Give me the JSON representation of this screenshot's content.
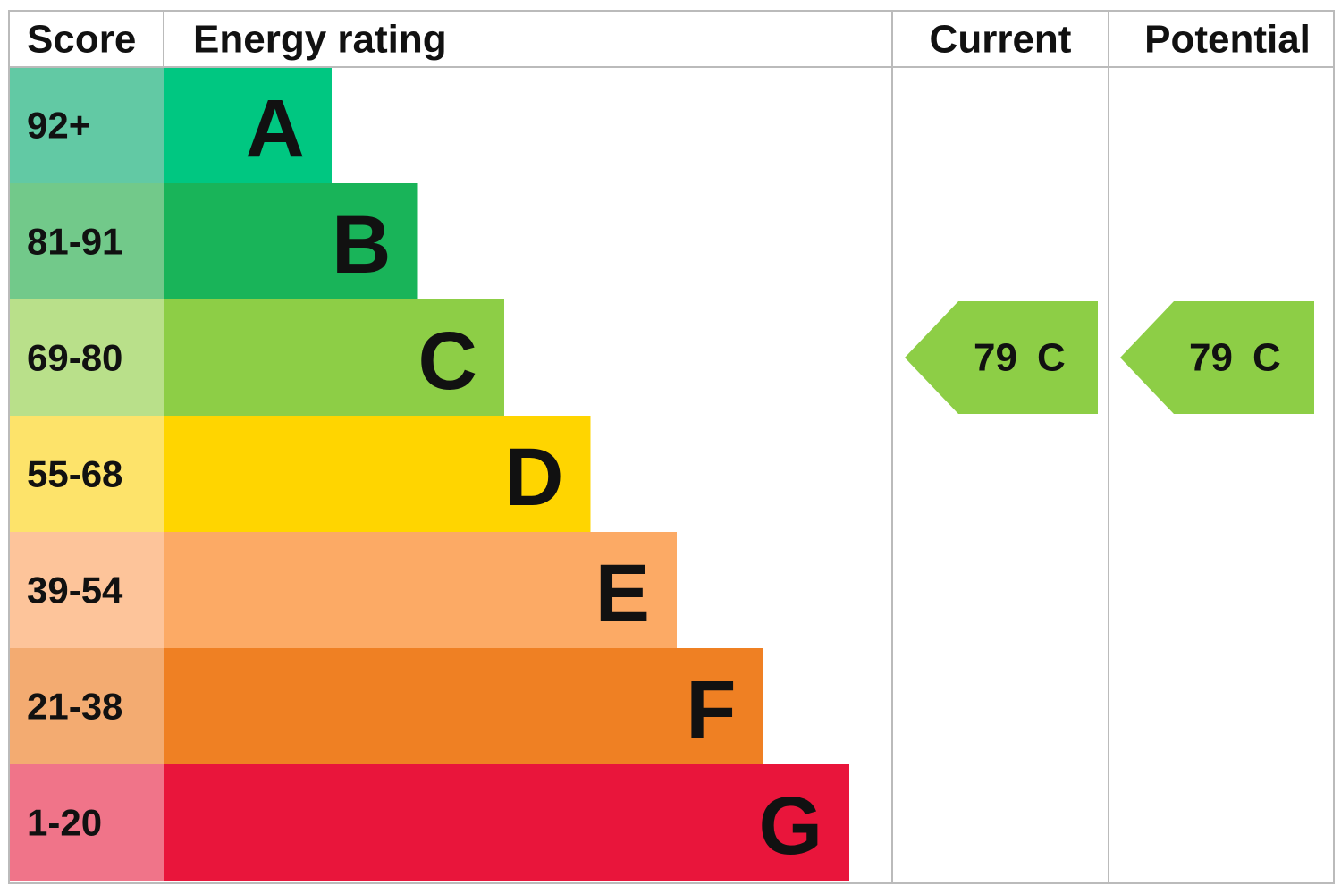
{
  "header": {
    "score": "Score",
    "energy_rating": "Energy rating",
    "current": "Current",
    "potential": "Potential"
  },
  "bands": [
    {
      "score": "92+",
      "rating": "A",
      "color": "#00c781",
      "light": "#62c9a4"
    },
    {
      "score": "81-91",
      "rating": "B",
      "color": "#19b459",
      "light": "#72c98a"
    },
    {
      "score": "69-80",
      "rating": "C",
      "color": "#8dce46",
      "light": "#b9e08a"
    },
    {
      "score": "55-68",
      "rating": "D",
      "color": "#ffd500",
      "light": "#fde36a"
    },
    {
      "score": "39-54",
      "rating": "E",
      "color": "#fcaa65",
      "light": "#fdc49a"
    },
    {
      "score": "21-38",
      "rating": "F",
      "color": "#ef8023",
      "light": "#f3ab71"
    },
    {
      "score": "1-20",
      "rating": "G",
      "color": "#e9153b",
      "light": "#f07489"
    }
  ],
  "current": {
    "score": 79,
    "rating": "C"
  },
  "potential": {
    "score": 79,
    "rating": "C"
  }
}
